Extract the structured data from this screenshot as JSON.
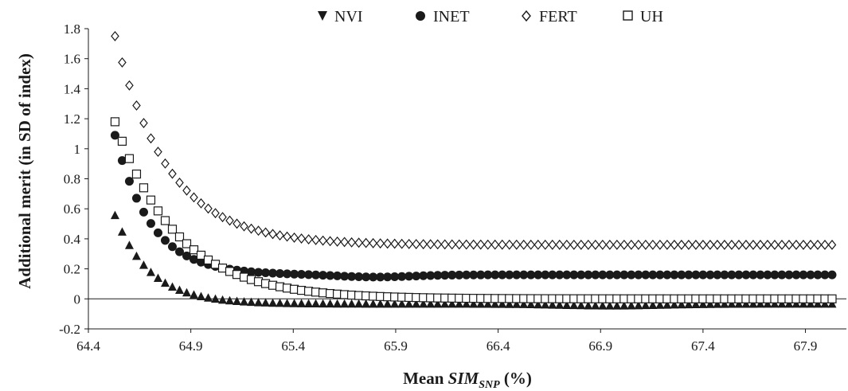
{
  "chart_data": {
    "type": "scatter",
    "title": "",
    "ylabel": "Additional merit (in SD of index)",
    "xlabel_parts": {
      "main": "Mean ",
      "italic": "SIM",
      "sub": "SNP",
      "suffix": " (%)"
    },
    "xlim": [
      64.4,
      68.1
    ],
    "ylim": [
      -0.2,
      1.8
    ],
    "x_ticks": [
      "64.4",
      "64.9",
      "65.4",
      "65.9",
      "66.4",
      "66.9",
      "67.4",
      "67.9"
    ],
    "y_ticks": [
      "-0.2",
      "0",
      "0.2",
      "0.4",
      "0.6",
      "0.8",
      "1",
      "1.2",
      "1.4",
      "1.6",
      "1.8"
    ],
    "grid": false,
    "legend_position": "top",
    "reference_line_y": 0,
    "series": [
      {
        "name": "NVI",
        "marker": "triangle",
        "color": "#1a1a1a",
        "curve": {
          "asymptote": -0.035,
          "amplitude": 0.59,
          "decay": 0.17,
          "dip": -0.012,
          "dip_center": 66.95,
          "dip_width": 0.35
        },
        "x_start": 64.53,
        "x_step": 0.035,
        "count": 101
      },
      {
        "name": "INET",
        "marker": "circle",
        "color": "#1a1a1a",
        "curve": {
          "asymptote": 0.16,
          "amplitude": 0.93,
          "decay": 0.175,
          "dip": -0.015,
          "dip_center": 65.8,
          "dip_width": 0.25
        },
        "x_start": 64.53,
        "x_step": 0.035,
        "count": 101
      },
      {
        "name": "FERT",
        "marker": "diamond",
        "color": "#1a1a1a",
        "curve": {
          "asymptote": 0.36,
          "amplitude": 1.39,
          "decay": 0.26,
          "dip": 0,
          "dip_center": 66.0,
          "dip_width": 0.3
        },
        "x_start": 64.53,
        "x_step": 0.035,
        "count": 101
      },
      {
        "name": "UH",
        "marker": "square",
        "color": "#1a1a1a",
        "curve": {
          "asymptote": 0.0,
          "amplitude": 1.18,
          "decay": 0.3,
          "dip": 0,
          "dip_center": 66.0,
          "dip_width": 0.3
        },
        "x_start": 64.53,
        "x_step": 0.035,
        "count": 101
      }
    ]
  }
}
